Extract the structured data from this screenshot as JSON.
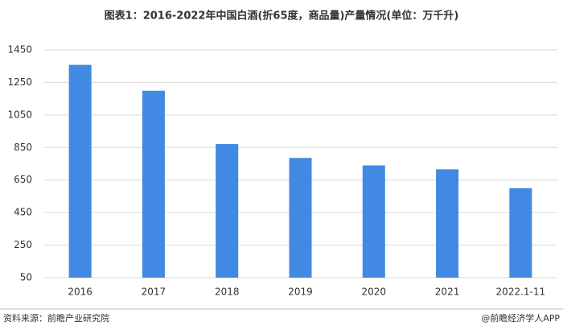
{
  "chart_data": {
    "type": "bar",
    "title": "图表1：2016-2022年中国白酒(折65度，商品量)产量情况(单位：万千升)",
    "categories": [
      "2016",
      "2017",
      "2018",
      "2019",
      "2020",
      "2021",
      "2022.1-11"
    ],
    "values": [
      1358,
      1199,
      871,
      786,
      740,
      716,
      600
    ],
    "color": "#4189e3",
    "ylim": [
      50,
      1450
    ],
    "yticks": [
      50,
      250,
      450,
      650,
      850,
      1050,
      1250,
      1450
    ],
    "grid": true,
    "source": "资料来源：前瞻产业研究院",
    "credit": "@前瞻经济学人APP"
  }
}
